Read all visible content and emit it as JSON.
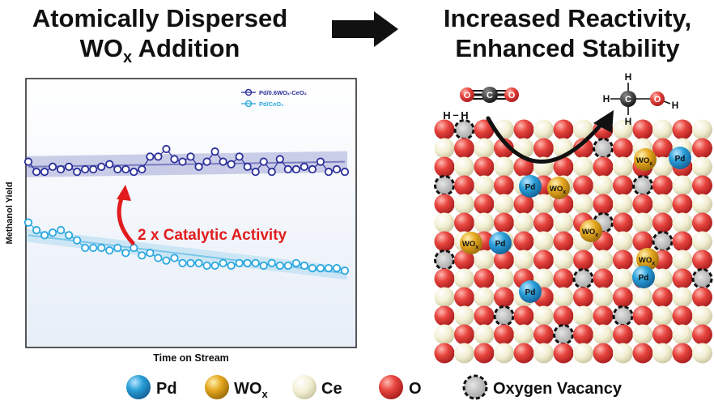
{
  "title_left": {
    "line1": "Atomically Dispersed",
    "line2_main": "WO",
    "line2_sub": "x",
    "line2_rest": " Addition"
  },
  "title_right": {
    "line1": "Increased Reactivity,",
    "line2": "Enhanced Stability"
  },
  "chart_data": {
    "type": "line",
    "xlabel": "Time on Stream",
    "ylabel": "Methanol Yield",
    "xlim": [
      0,
      40
    ],
    "ylim": [
      0,
      10
    ],
    "x": [
      0,
      1,
      2,
      3,
      4,
      5,
      6,
      7,
      8,
      9,
      10,
      11,
      12,
      13,
      14,
      15,
      16,
      17,
      18,
      19,
      20,
      21,
      22,
      23,
      24,
      25,
      26,
      27,
      28,
      29,
      30,
      31,
      32,
      33,
      34,
      35,
      36,
      37,
      38,
      39
    ],
    "series": [
      {
        "name": "Pd/0.6WOₓ-CeO₂",
        "color": "#2b2f9a",
        "values": [
          7.2,
          6.8,
          6.8,
          7.0,
          6.9,
          7.0,
          6.8,
          6.9,
          6.9,
          7.0,
          7.1,
          6.9,
          6.9,
          6.8,
          6.9,
          7.4,
          7.4,
          7.7,
          7.3,
          7.2,
          7.4,
          7.0,
          7.2,
          7.6,
          7.2,
          7.1,
          7.4,
          7.0,
          6.8,
          7.2,
          6.8,
          7.3,
          6.9,
          6.9,
          7.0,
          6.9,
          7.2,
          6.8,
          6.9,
          6.8
        ],
        "band": [
          7.0,
          7.2
        ]
      },
      {
        "name": "Pd/CeO₂",
        "color": "#2aa7e0",
        "values": [
          4.8,
          4.5,
          4.3,
          4.4,
          4.5,
          4.3,
          4.1,
          3.8,
          3.8,
          3.8,
          3.7,
          3.8,
          3.6,
          3.8,
          3.5,
          3.6,
          3.4,
          3.3,
          3.4,
          3.2,
          3.2,
          3.2,
          3.1,
          3.1,
          3.2,
          3.1,
          3.2,
          3.2,
          3.2,
          3.1,
          3.2,
          3.1,
          3.1,
          3.2,
          3.1,
          3.0,
          3.0,
          3.0,
          3.0,
          2.9
        ],
        "band": [
          4.3,
          2.8
        ]
      }
    ],
    "annotation": "2 x Catalytic Activity"
  },
  "molecules": {
    "co2": {
      "left": "O",
      "center": "C",
      "right": "O"
    },
    "h2": {
      "a": "H",
      "bond": "–",
      "b": "H"
    },
    "methanol": {
      "c": "C",
      "o": "O",
      "h1": "H",
      "h2": "H",
      "h3": "H",
      "h4": "H"
    }
  },
  "lattice_labels": {
    "pd": "Pd",
    "wox_main": "WO",
    "wox_sub": "x"
  },
  "legend": [
    {
      "key": "pd",
      "label": "Pd",
      "color": "#2a9fd8"
    },
    {
      "key": "wox",
      "label_main": "WO",
      "label_sub": "x",
      "color": "#e5a820"
    },
    {
      "key": "ce",
      "label": "Ce",
      "color": "#f4f1d6"
    },
    {
      "key": "o",
      "label": "O",
      "color": "#e33b3b"
    },
    {
      "key": "vacancy",
      "label": "Oxygen Vacancy",
      "color": "#8a8a8a"
    }
  ],
  "colors": {
    "arrow": "#e11d1d",
    "dark": "#111111"
  }
}
